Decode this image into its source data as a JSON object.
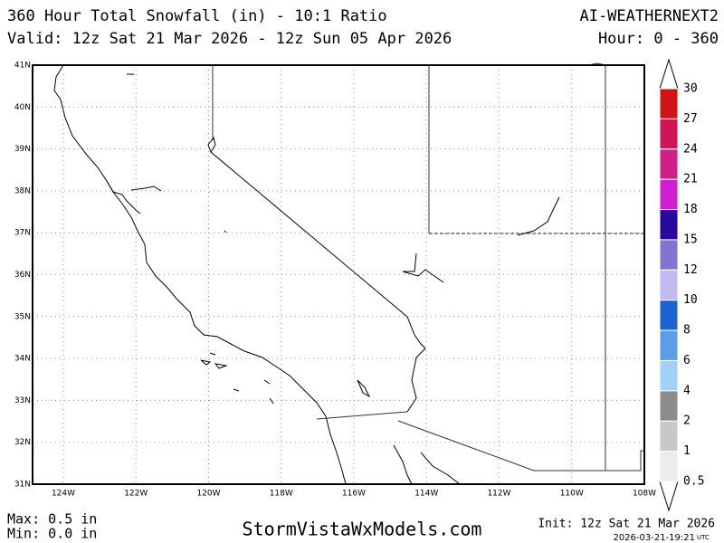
{
  "header": {
    "title": "360 Hour Total Snowfall (in) - 10:1 Ratio",
    "model": "AI-WEATHERNEXT2",
    "valid": "Valid: 12z Sat 21 Mar 2026 - 12z Sun 05 Apr 2026",
    "hour": "Hour: 0 - 360"
  },
  "map": {
    "lat_labels": [
      "41N",
      "40N",
      "39N",
      "38N",
      "37N",
      "36N",
      "35N",
      "34N",
      "33N",
      "32N",
      "31N"
    ],
    "lon_labels": [
      "124W",
      "122W",
      "120W",
      "118W",
      "116W",
      "114W",
      "112W",
      "110W",
      "108W"
    ]
  },
  "legend": {
    "labels": [
      "30",
      "27",
      "24",
      "21",
      "18",
      "15",
      "12",
      "10",
      "8",
      "6",
      "4",
      "2",
      "1",
      "0.5"
    ],
    "colors": [
      "#d01414",
      "#d01456",
      "#d01e8a",
      "#d21ed2",
      "#280aa0",
      "#8274d2",
      "#c2baee",
      "#1c64d2",
      "#5a9ee8",
      "#a0d2f8",
      "#8c8c8c",
      "#c8c8c8",
      "#ececec"
    ]
  },
  "footer": {
    "max": "Max: 0.5 in",
    "min": "Min: 0.0 in",
    "site": "StormVistaWxModels.com",
    "init": "Init: 12z Sat 21 Mar 2026",
    "timestamp": "2026-03-21-19:21",
    "tz": "UTC"
  }
}
